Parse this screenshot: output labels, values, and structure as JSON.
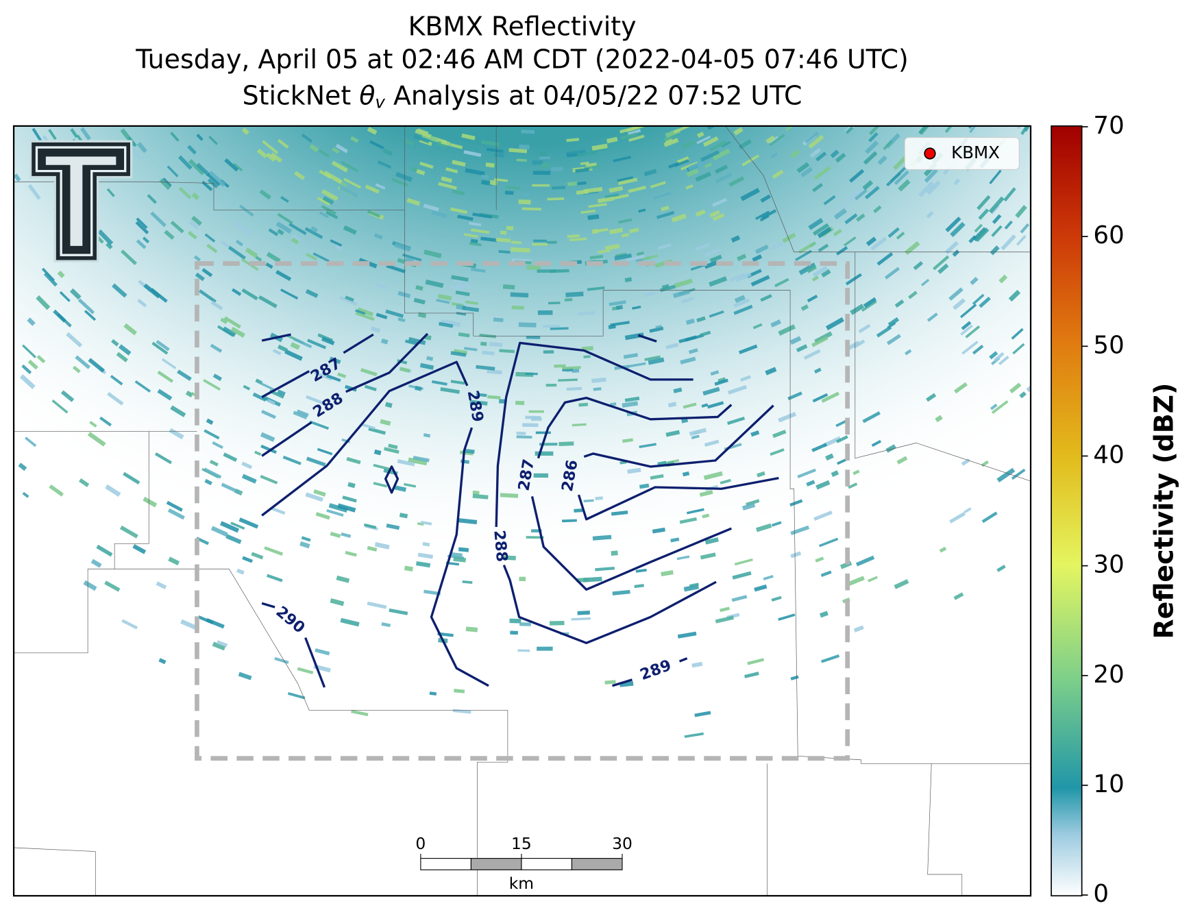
{
  "title_lines": [
    "KBMX Reflectivity",
    "Tuesday, April 05 at 02:46 AM CDT (2022-04-05 07:46 UTC)"
  ],
  "analysis_title": {
    "prefix": "StickNet ",
    "symbol": "θ",
    "subscript": "v",
    "suffix": " Analysis at 04/05/22 07:52 UTC"
  },
  "legend": {
    "entries": [
      "KBMX"
    ]
  },
  "colorbar": {
    "label": "Reflectivity (dBZ)",
    "lim": [
      0,
      70
    ],
    "ticks": [
      0,
      10,
      20,
      30,
      40,
      50,
      60,
      70
    ]
  },
  "contour_labels": [
    287,
    288,
    289,
    287,
    286,
    288,
    290,
    289
  ],
  "scale_bar": {
    "ticks": [
      0,
      15,
      30
    ],
    "unit": "km"
  }
}
